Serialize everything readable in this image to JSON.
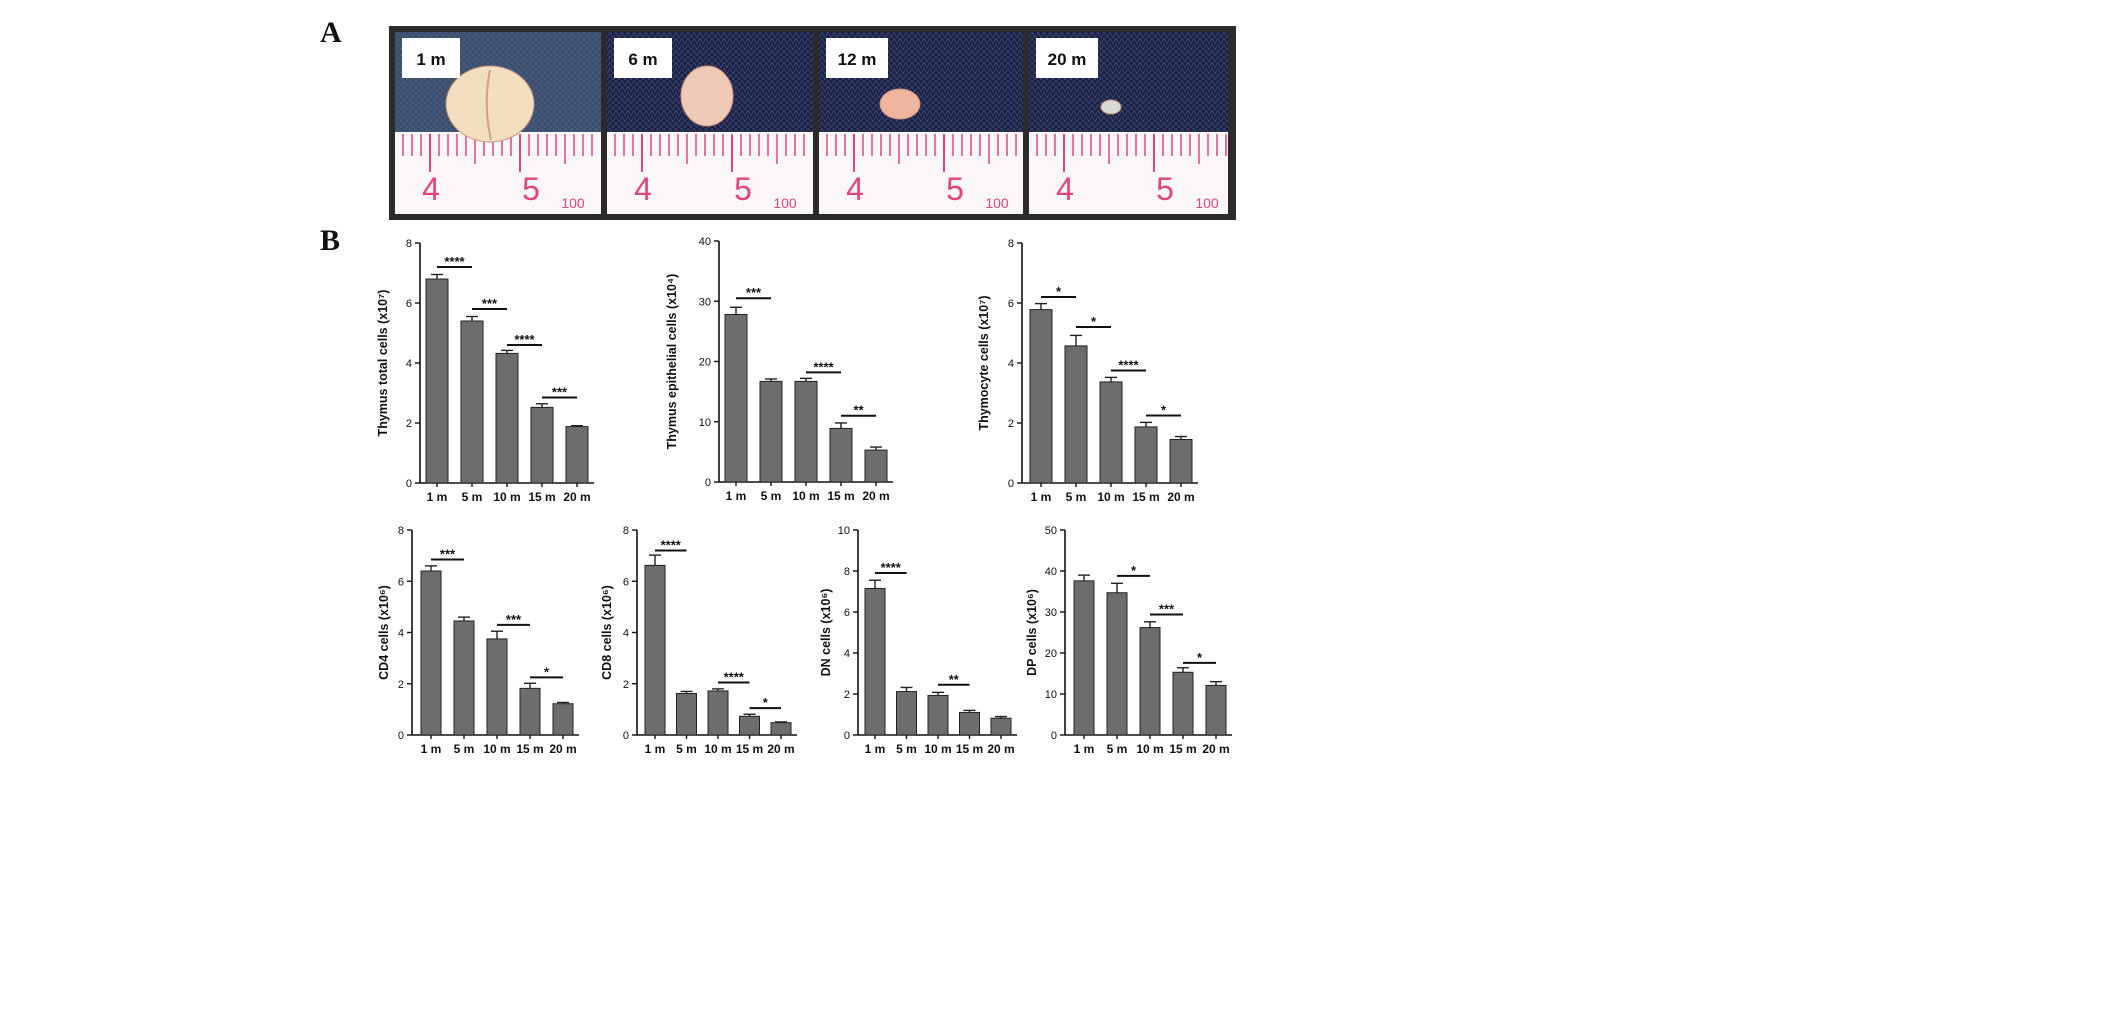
{
  "panel_labels": {
    "a": "A",
    "b": "B"
  },
  "photo_panels": [
    {
      "label": "1 m",
      "organ": "large",
      "ruler_numbers": [
        "4",
        "5",
        "100"
      ]
    },
    {
      "label": "6 m",
      "organ": "medium",
      "ruler_numbers": [
        "4",
        "5",
        "100"
      ]
    },
    {
      "label": "12 m",
      "organ": "small",
      "ruler_numbers": [
        "4",
        "5",
        "100"
      ]
    },
    {
      "label": "20 m",
      "organ": "tiny",
      "ruler_numbers": [
        "4",
        "5",
        "100"
      ]
    }
  ],
  "colors": {
    "bar": "#6d6d6d",
    "axis": "#111111",
    "photo_bg_1": "#3a4f6e",
    "photo_bg_2": "#1c2247",
    "ruler": "#e0457b"
  },
  "chart_data": [
    {
      "type": "bar",
      "ylabel": "Thymus total cells (x10⁷)",
      "categories": [
        "1 m",
        "5 m",
        "10 m",
        "15 m",
        "20 m"
      ],
      "values": [
        6.8,
        5.4,
        4.32,
        2.52,
        1.88
      ],
      "errors": [
        0.15,
        0.15,
        0.1,
        0.12,
        0.03
      ],
      "ylim": [
        0,
        8
      ],
      "yticks": [
        "0",
        "2",
        "4",
        "6",
        "8"
      ],
      "significance": [
        {
          "from": 0,
          "to": 1,
          "label": "****",
          "y": 7.2
        },
        {
          "from": 1,
          "to": 2,
          "label": "***",
          "y": 5.8
        },
        {
          "from": 2,
          "to": 3,
          "label": "****",
          "y": 4.6
        },
        {
          "from": 3,
          "to": 4,
          "label": "***",
          "y": 2.85
        }
      ]
    },
    {
      "type": "bar",
      "ylabel": "Thymus epithelial cells (x10⁴)",
      "categories": [
        "1 m",
        "5 m",
        "10 m",
        "15 m",
        "20 m"
      ],
      "values": [
        27.8,
        16.7,
        16.7,
        8.9,
        5.3
      ],
      "errors": [
        1.2,
        0.4,
        0.5,
        0.9,
        0.5
      ],
      "ylim": [
        0,
        40
      ],
      "yticks": [
        "0",
        "10",
        "20",
        "30",
        "40"
      ],
      "significance": [
        {
          "from": 0,
          "to": 1,
          "label": "***",
          "y": 30.5
        },
        {
          "from": 2,
          "to": 3,
          "label": "****",
          "y": 18.2
        },
        {
          "from": 3,
          "to": 4,
          "label": "**",
          "y": 11
        }
      ]
    },
    {
      "type": "bar",
      "ylabel": "Thymocyte cells (x10⁷)",
      "categories": [
        "1 m",
        "5 m",
        "10 m",
        "15 m",
        "20 m"
      ],
      "values": [
        5.78,
        4.57,
        3.37,
        1.87,
        1.45
      ],
      "errors": [
        0.2,
        0.35,
        0.15,
        0.15,
        0.1
      ],
      "ylim": [
        0,
        8
      ],
      "yticks": [
        "0",
        "2",
        "4",
        "6",
        "8"
      ],
      "significance": [
        {
          "from": 0,
          "to": 1,
          "label": "*",
          "y": 6.2
        },
        {
          "from": 1,
          "to": 2,
          "label": "*",
          "y": 5.2
        },
        {
          "from": 2,
          "to": 3,
          "label": "****",
          "y": 3.75
        },
        {
          "from": 3,
          "to": 4,
          "label": "*",
          "y": 2.25
        }
      ]
    },
    {
      "type": "bar",
      "ylabel": "CD4 cells (x10⁶)",
      "categories": [
        "1 m",
        "5 m",
        "10 m",
        "15 m",
        "20 m"
      ],
      "values": [
        6.4,
        4.45,
        3.75,
        1.82,
        1.22
      ],
      "errors": [
        0.2,
        0.15,
        0.3,
        0.2,
        0.05
      ],
      "ylim": [
        0,
        8
      ],
      "yticks": [
        "0",
        "2",
        "4",
        "6",
        "8"
      ],
      "significance": [
        {
          "from": 0,
          "to": 1,
          "label": "***",
          "y": 6.85
        },
        {
          "from": 2,
          "to": 3,
          "label": "***",
          "y": 4.3
        },
        {
          "from": 3,
          "to": 4,
          "label": "*",
          "y": 2.25
        }
      ]
    },
    {
      "type": "bar",
      "ylabel": "CD8 cells (x10⁶)",
      "categories": [
        "1 m",
        "5 m",
        "10 m",
        "15 m",
        "20 m"
      ],
      "values": [
        6.62,
        1.62,
        1.72,
        0.73,
        0.48
      ],
      "errors": [
        0.4,
        0.08,
        0.08,
        0.08,
        0.03
      ],
      "ylim": [
        0,
        8
      ],
      "yticks": [
        "0",
        "2",
        "4",
        "6",
        "8"
      ],
      "significance": [
        {
          "from": 0,
          "to": 1,
          "label": "****",
          "y": 7.2
        },
        {
          "from": 2,
          "to": 3,
          "label": "****",
          "y": 2.05
        },
        {
          "from": 3,
          "to": 4,
          "label": "*",
          "y": 1.05
        }
      ]
    },
    {
      "type": "bar",
      "ylabel": "DN cells (x10⁶)",
      "categories": [
        "1 m",
        "5 m",
        "10 m",
        "15 m",
        "20 m"
      ],
      "values": [
        7.15,
        2.12,
        1.93,
        1.1,
        0.82
      ],
      "errors": [
        0.4,
        0.2,
        0.15,
        0.1,
        0.08
      ],
      "ylim": [
        0,
        10
      ],
      "yticks": [
        "0",
        "2",
        "4",
        "6",
        "8",
        "10"
      ],
      "significance": [
        {
          "from": 0,
          "to": 1,
          "label": "****",
          "y": 7.9
        },
        {
          "from": 2,
          "to": 3,
          "label": "**",
          "y": 2.45
        }
      ]
    },
    {
      "type": "bar",
      "ylabel": "DP cells (x10⁶)",
      "categories": [
        "1 m",
        "5 m",
        "10 m",
        "15 m",
        "20 m"
      ],
      "values": [
        37.6,
        34.7,
        26.2,
        15.3,
        12.1
      ],
      "errors": [
        1.4,
        2.3,
        1.4,
        1.1,
        0.9
      ],
      "ylim": [
        0,
        50
      ],
      "yticks": [
        "0",
        "10",
        "20",
        "30",
        "40",
        "50"
      ],
      "significance": [
        {
          "from": 1,
          "to": 2,
          "label": "*",
          "y": 38.8
        },
        {
          "from": 2,
          "to": 3,
          "label": "***",
          "y": 29.4
        },
        {
          "from": 3,
          "to": 4,
          "label": "*",
          "y": 17.6
        }
      ]
    }
  ]
}
